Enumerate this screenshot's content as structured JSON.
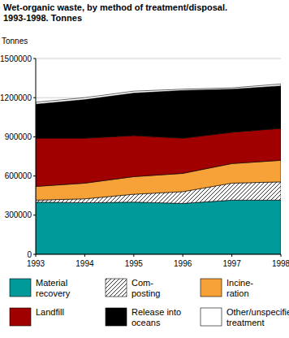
{
  "chart_data": {
    "type": "area",
    "title": "Wet-organic waste, by method of treatment/disposal. 1993-1998. Tonnes",
    "y_label": "Tonnes",
    "x": [
      1993,
      1994,
      1995,
      1996,
      1997,
      1998
    ],
    "xlim": [
      1993,
      1998
    ],
    "xticks": [
      1993,
      1994,
      1995,
      1996,
      1997,
      1998
    ],
    "ylim": [
      0,
      1500000
    ],
    "yticks": [
      0,
      300000,
      600000,
      900000,
      1200000,
      1500000
    ],
    "stacked": true,
    "grid": true,
    "legend": "bottom",
    "series": [
      {
        "name": "Material recovery",
        "color": "#009a9a",
        "values": [
          400000,
          395000,
          400000,
          390000,
          415000,
          415000
        ]
      },
      {
        "name": "Com-posting",
        "color": "#ffffff",
        "values": [
          15000,
          30000,
          60000,
          90000,
          130000,
          140000
        ]
      },
      {
        "name": "Incine-ration",
        "color": "#f7a238",
        "values": [
          105000,
          120000,
          135000,
          140000,
          150000,
          165000
        ]
      },
      {
        "name": "Landfill",
        "color": "#a00000",
        "values": [
          370000,
          345000,
          315000,
          270000,
          240000,
          245000
        ]
      },
      {
        "name": "Release into oceans",
        "color": "#000000",
        "values": [
          260000,
          295000,
          325000,
          365000,
          330000,
          325000
        ]
      },
      {
        "name": "Other/unspecified treatment",
        "color": "#ffffff",
        "values": [
          15000,
          15000,
          15000,
          10000,
          10000,
          15000
        ]
      }
    ]
  }
}
